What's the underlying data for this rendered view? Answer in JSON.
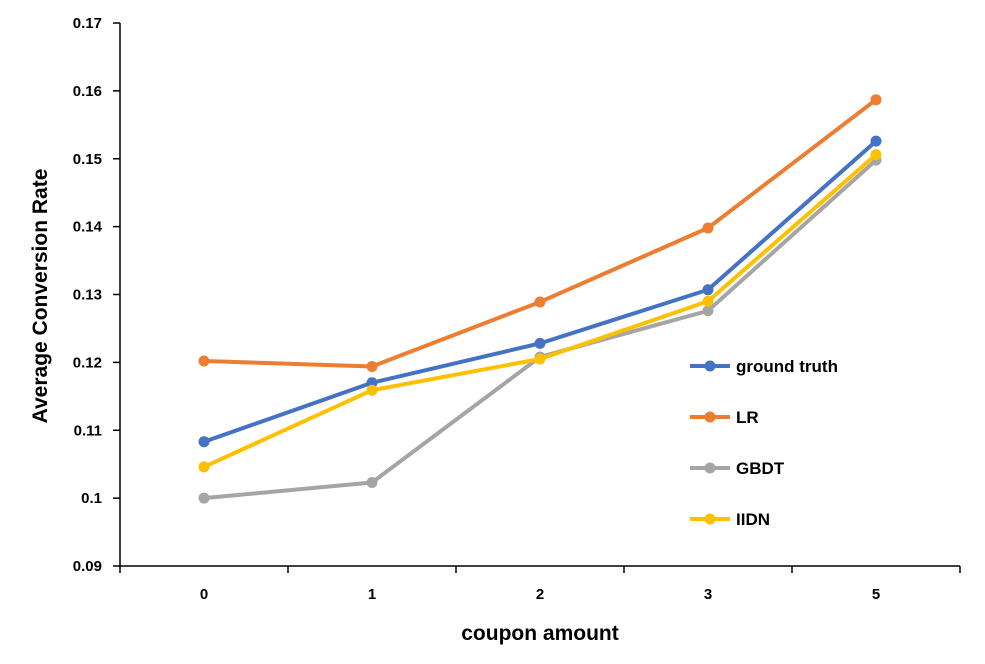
{
  "chart_data": {
    "type": "line",
    "title": "",
    "xlabel": "coupon amount",
    "ylabel": "Average Conversion Rate",
    "categories": [
      "0",
      "1",
      "2",
      "3",
      "5"
    ],
    "ylim": [
      0.09,
      0.17
    ],
    "yticks": [
      "0.09",
      "0.1",
      "0.11",
      "0.12",
      "0.13",
      "0.14",
      "0.15",
      "0.16",
      "0.17"
    ],
    "yticks_values": [
      0.09,
      0.1,
      0.11,
      0.12,
      0.13,
      0.14,
      0.15,
      0.16,
      0.17
    ],
    "grid": false,
    "legend_position": "right",
    "series": [
      {
        "name": "ground truth",
        "color": "#4472C4",
        "values": [
          0.1083,
          0.117,
          0.1228,
          0.1307,
          0.1526
        ]
      },
      {
        "name": "LR",
        "color": "#ED7D31",
        "values": [
          0.1202,
          0.1194,
          0.1289,
          0.1398,
          0.1587
        ]
      },
      {
        "name": "GBDT",
        "color": "#A5A5A5",
        "values": [
          0.1,
          0.1023,
          0.1208,
          0.1276,
          0.1498
        ]
      },
      {
        "name": "IIDN",
        "color": "#FFC000",
        "values": [
          0.1046,
          0.1159,
          0.1205,
          0.129,
          0.1506
        ]
      }
    ]
  }
}
